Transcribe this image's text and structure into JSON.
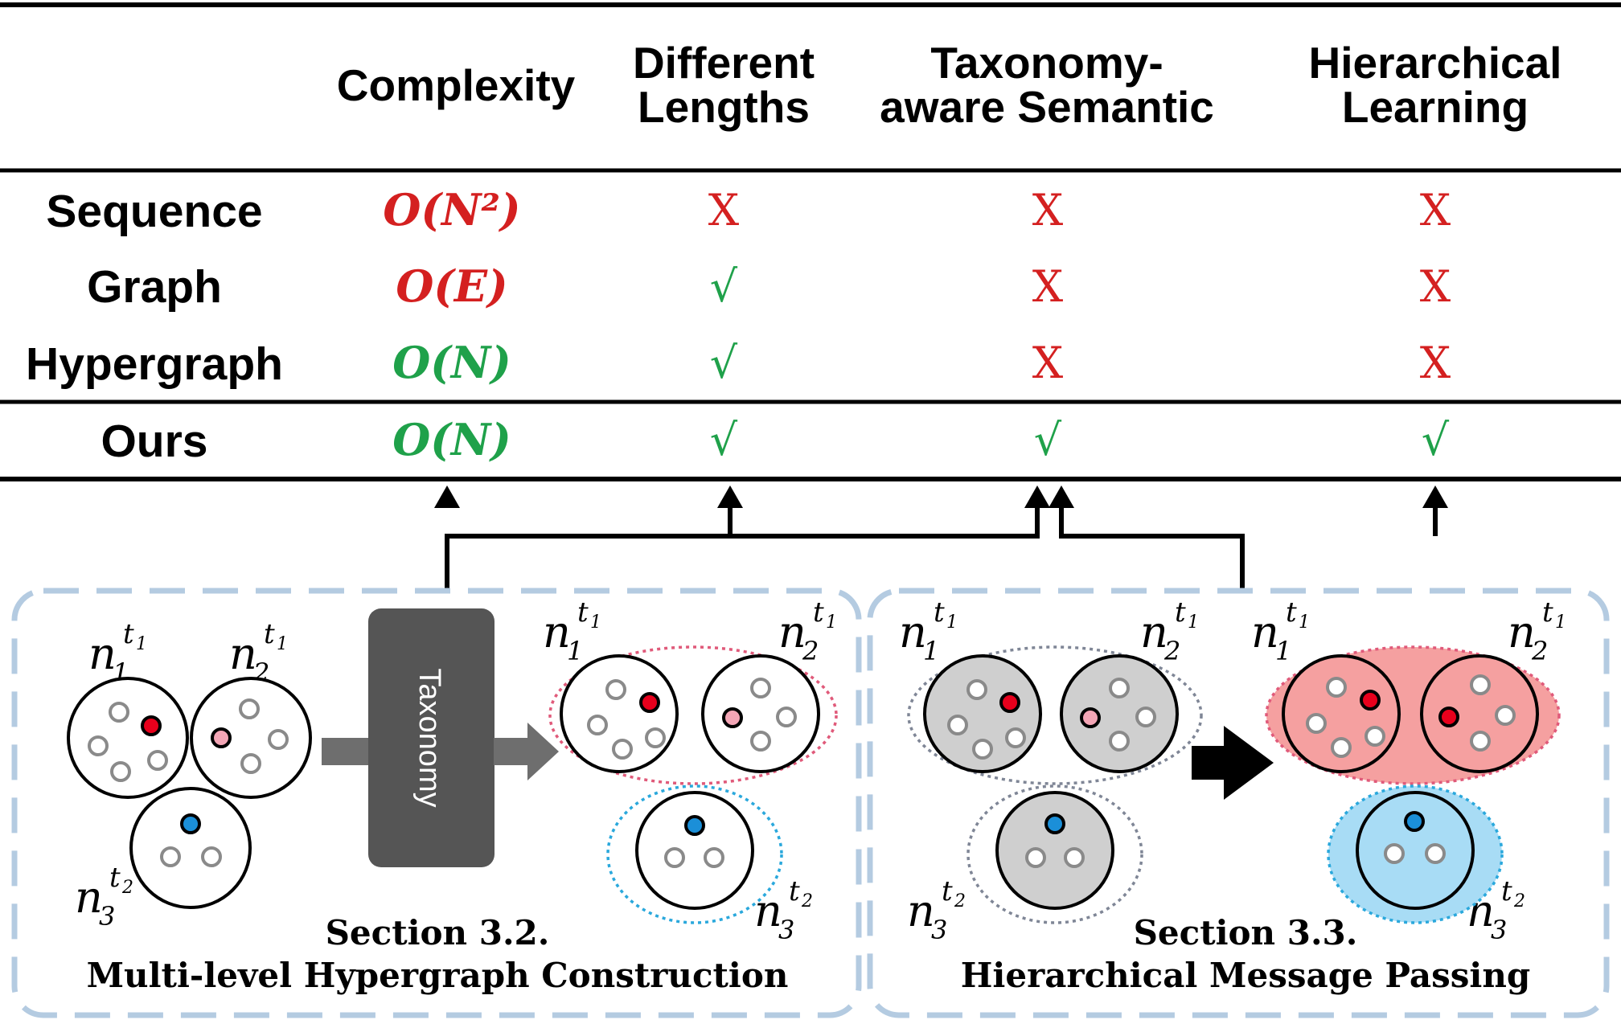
{
  "table": {
    "columns": [
      "Complexity",
      "Different Lengths",
      "Taxonomy-aware Semantic",
      "Hierarchical Learning"
    ],
    "column_lines": [
      [
        "Complexity"
      ],
      [
        "Different",
        "Lengths"
      ],
      [
        "Taxonomy-",
        "aware Semantic"
      ],
      [
        "Hierarchical",
        "Learning"
      ]
    ],
    "rows": [
      {
        "label": "Sequence",
        "complexity": "O(N²)",
        "complexity_color": "#d42020",
        "different_lengths": "X",
        "taxonomy_aware_semantic": "X",
        "hierarchical_learning": "X"
      },
      {
        "label": "Graph",
        "complexity": "O(E)",
        "complexity_color": "#d42020",
        "different_lengths": "√",
        "taxonomy_aware_semantic": "X",
        "hierarchical_learning": "X"
      },
      {
        "label": "Hypergraph",
        "complexity": "O(N)",
        "complexity_color": "#1fa14a",
        "different_lengths": "√",
        "taxonomy_aware_semantic": "X",
        "hierarchical_learning": "X"
      },
      {
        "label": "Ours",
        "complexity": "O(N)",
        "complexity_color": "#1fa14a",
        "different_lengths": "√",
        "taxonomy_aware_semantic": "√",
        "hierarchical_learning": "√"
      }
    ]
  },
  "panels": [
    {
      "section": "Section 3.2.",
      "title": "Multi-level Hypergraph Construction",
      "block_label": "Taxonomy"
    },
    {
      "section": "Section 3.3.",
      "title": "Hierarchical Message Passing"
    }
  ],
  "node_labels": {
    "n": "n",
    "n1_sub": "1",
    "n2_sub": "2",
    "n3_sub": "3",
    "t1_sup": "t",
    "t1_sub": "1",
    "t2_sup": "t",
    "t2_sub": "2"
  },
  "colors": {
    "check": "#1fa14a",
    "cross": "#d42020",
    "red_dot": "#e8001c",
    "pink_dot": "#f4a6b6",
    "blue_dot": "#1b8fd8",
    "panel_border": "#b4cbe1",
    "taxonomy_block": "#555555",
    "pink_hyperedge": "#f5a0a0",
    "blue_hyperedge": "#a8dcf5",
    "grey_node_fill": "#cfcfcf"
  },
  "icons": [
    "check-mark-icon",
    "cross-mark-icon",
    "arrow-right-icon",
    "arrow-up-icon"
  ]
}
